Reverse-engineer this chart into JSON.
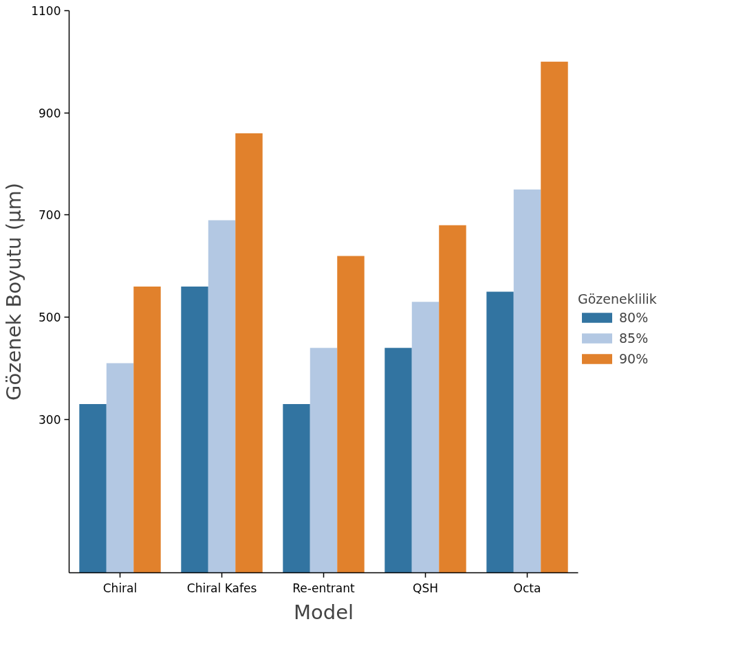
{
  "chart_data": {
    "type": "bar",
    "xlabel": "Model",
    "ylabel": "Gözenek Boyutu (µm)",
    "legend_title": "Gözeneklilik",
    "categories": [
      "Chiral",
      "Chiral Kafes",
      "Re-entrant",
      "QSH",
      "Octa"
    ],
    "series": [
      {
        "name": "80%",
        "color": "#3274a1",
        "values": [
          330,
          560,
          330,
          440,
          550
        ]
      },
      {
        "name": "85%",
        "color": "#b3c8e3",
        "values": [
          410,
          690,
          440,
          530,
          750
        ]
      },
      {
        "name": "90%",
        "color": "#e1812c",
        "values": [
          560,
          860,
          620,
          680,
          1000
        ]
      }
    ],
    "ylim": [
      0,
      1100
    ],
    "yticks": [
      300,
      500,
      700,
      900,
      1100
    ],
    "grid": false,
    "legend": "right"
  }
}
